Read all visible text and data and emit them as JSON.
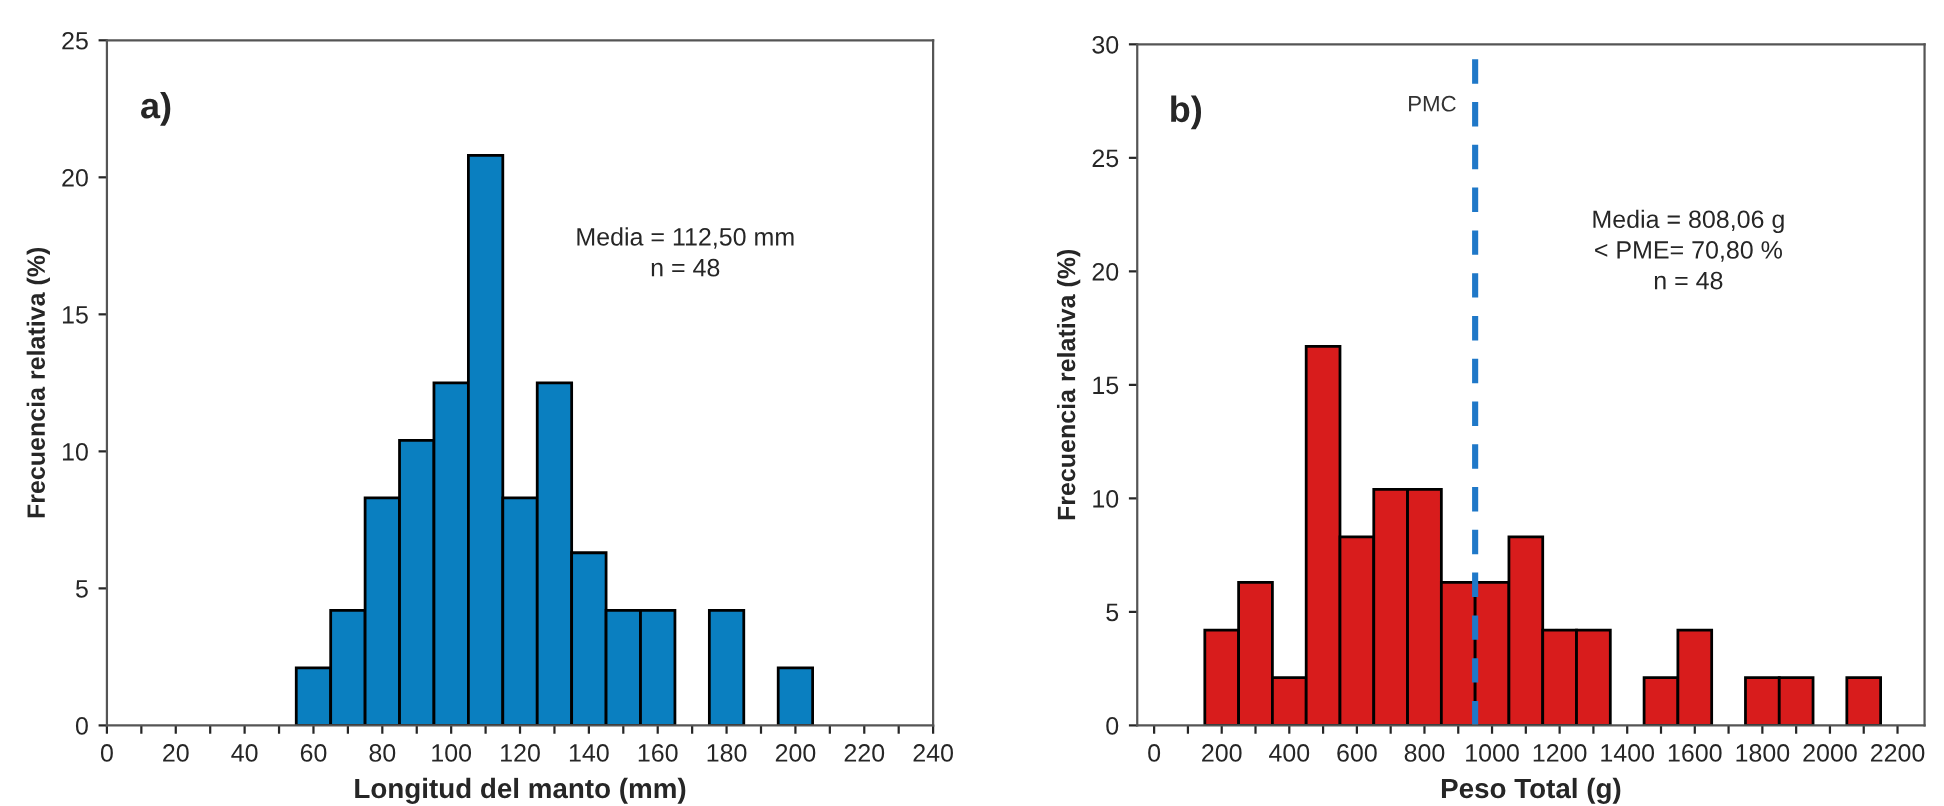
{
  "chart_data": [
    {
      "type": "histogram",
      "xlabel": "Longitud del manto (mm)",
      "ylabel": "Frecuencia relativa (%)",
      "color": "#0a7fc0",
      "bins": [
        55,
        65,
        75,
        85,
        95,
        105,
        115,
        125,
        135,
        145,
        155,
        165,
        175,
        185,
        195,
        205
      ],
      "values": [
        2.1,
        4.2,
        8.3,
        10.4,
        12.5,
        20.8,
        8.3,
        12.5,
        6.3,
        4.2,
        4.2,
        0,
        4.2,
        0,
        2.1
      ],
      "xlim": [
        0,
        240
      ],
      "ylim": [
        0,
        25
      ],
      "xticks": [
        0,
        {
          "value": 10,
          "label": null
        },
        20,
        {
          "value": 30,
          "label": null
        },
        40,
        {
          "value": 50,
          "label": null
        },
        60,
        {
          "value": 70,
          "label": null
        },
        80,
        {
          "value": 90,
          "label": null
        },
        100,
        {
          "value": 110,
          "label": null
        },
        120,
        {
          "value": 130,
          "label": null
        },
        140,
        {
          "value": 150,
          "label": null
        },
        160,
        {
          "value": 170,
          "label": null
        },
        180,
        {
          "value": 190,
          "label": null
        },
        200,
        {
          "value": 210,
          "label": null
        },
        220,
        {
          "value": 230,
          "label": null
        },
        240
      ],
      "yticks": [
        0,
        5,
        10,
        15,
        20,
        25
      ],
      "annotations": [
        "a)",
        "Media = 112,50 mm",
        "n = 48"
      ],
      "grid": false,
      "legend": false
    },
    {
      "type": "histogram",
      "xlabel": "Peso Total (g)",
      "ylabel": "Frecuencia relativa (%)",
      "color": "#d81c1c",
      "bins": [
        150,
        250,
        350,
        450,
        550,
        650,
        750,
        850,
        950,
        1050,
        1150,
        1250,
        1350,
        1450,
        1550,
        1650,
        1750,
        1850,
        1950,
        2050,
        2150
      ],
      "values": [
        4.2,
        6.3,
        2.1,
        16.7,
        8.3,
        10.4,
        10.4,
        6.3,
        6.3,
        8.3,
        4.2,
        4.2,
        0,
        2.1,
        4.2,
        0,
        2.1,
        2.1,
        0,
        2.1
      ],
      "xlim": [
        -50,
        2280
      ],
      "ylim": [
        0,
        30
      ],
      "xticks": [
        0,
        {
          "value": 100,
          "label": null
        },
        200,
        {
          "value": 300,
          "label": null
        },
        400,
        {
          "value": 500,
          "label": null
        },
        600,
        {
          "value": 700,
          "label": null
        },
        800,
        {
          "value": 900,
          "label": null
        },
        1000,
        {
          "value": 1100,
          "label": null
        },
        1200,
        {
          "value": 1300,
          "label": null
        },
        1400,
        {
          "value": 1500,
          "label": null
        },
        1600,
        {
          "value": 1700,
          "label": null
        },
        1800,
        {
          "value": 1900,
          "label": null
        },
        2000,
        {
          "value": 2100,
          "label": null
        },
        2200
      ],
      "yticks": [
        0,
        5,
        10,
        15,
        20,
        25,
        30
      ],
      "ref_lines": [
        {
          "axis": "x",
          "value": 950,
          "label": "PMC",
          "color": "#1f78c8",
          "line_style": "dashed"
        }
      ],
      "annotations": [
        "b)",
        "Media = 808,06 g",
        "< PME= 70,80 %",
        "n = 48"
      ],
      "grid": false,
      "legend": false
    }
  ]
}
